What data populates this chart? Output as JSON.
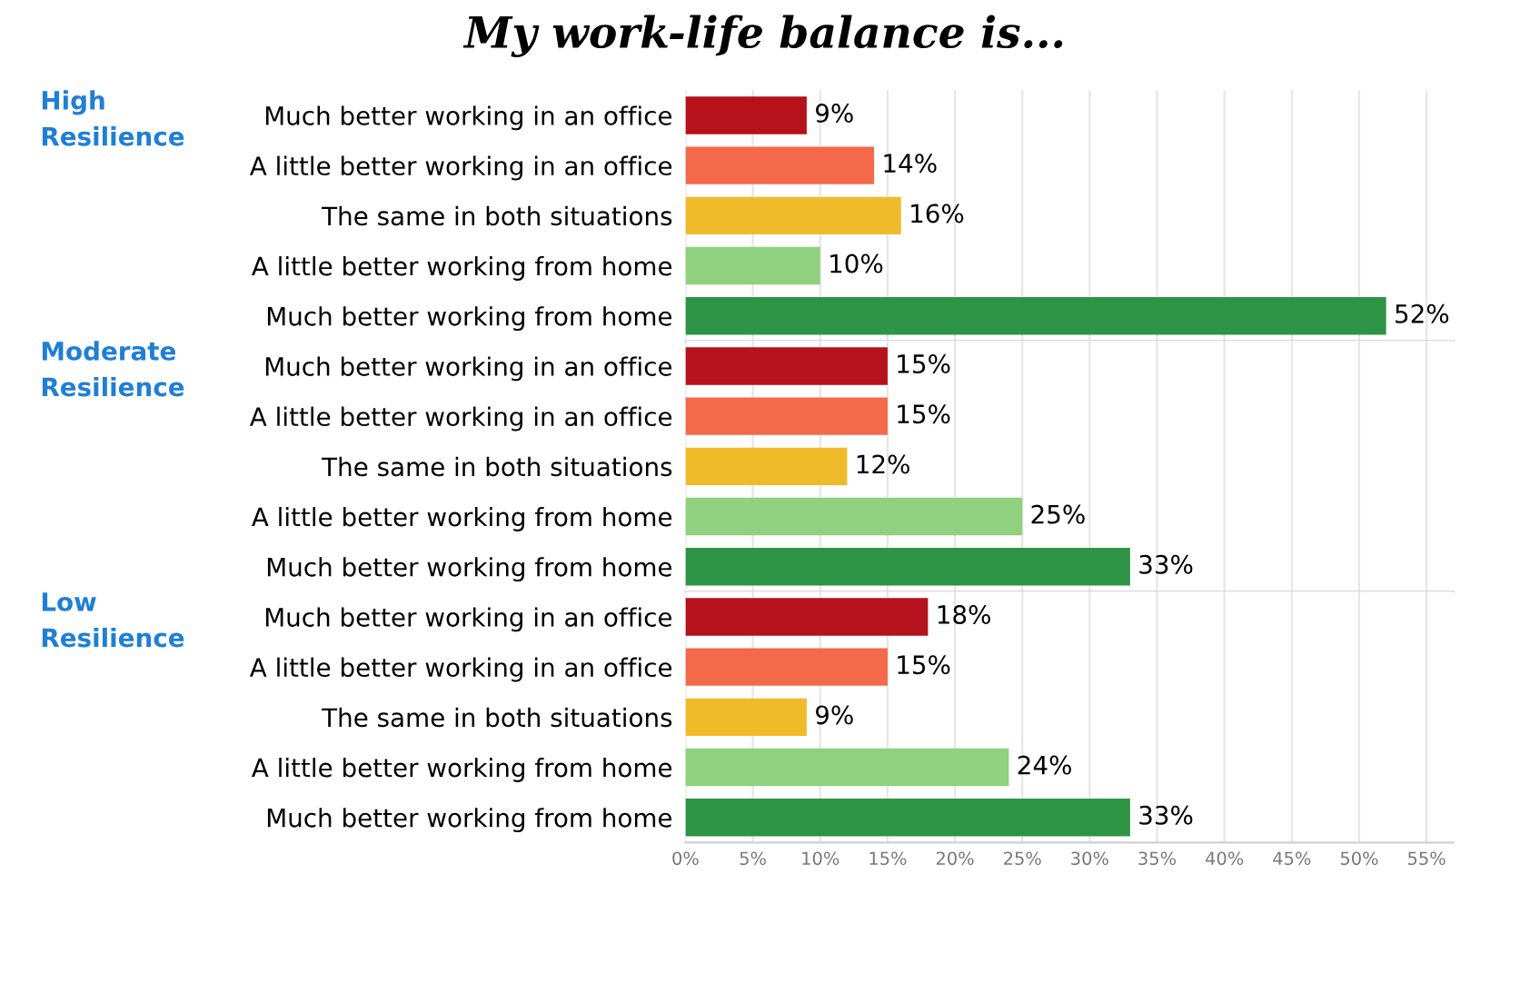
{
  "chart_data": [
    {
      "type": "bar",
      "orientation": "horizontal",
      "title": "My work-life balance is...",
      "ylabel": "High\nResilience",
      "categories": [
        "Much better working in an office",
        "A little better working in an office",
        "The same in both situations",
        "A little better working from home",
        "Much better working from home"
      ],
      "values": [
        9,
        14,
        16,
        10,
        52
      ],
      "colors": [
        "#b5121b",
        "#f4694a",
        "#f0bb2b",
        "#8fd17e",
        "#2e9445"
      ],
      "value_labels": [
        "9%",
        "14%",
        "16%",
        "10%",
        "52%"
      ],
      "xlim": [
        0,
        57
      ],
      "xticks": [
        0,
        5,
        10,
        15,
        20,
        25,
        30,
        35,
        40,
        45,
        50,
        55
      ],
      "tick_labels": "y",
      "grid": "x"
    },
    {
      "type": "bar",
      "orientation": "horizontal",
      "ylabel": "Moderate\nResilience",
      "categories": [
        "Much better working in an office",
        "A little better working in an office",
        "The same in both situations",
        "A little better working from home",
        "Much better working from home"
      ],
      "values": [
        15,
        15,
        12,
        25,
        33
      ],
      "colors": [
        "#b5121b",
        "#f4694a",
        "#f0bb2b",
        "#8fd17e",
        "#2e9445"
      ],
      "value_labels": [
        "15%",
        "15%",
        "12%",
        "25%",
        "33%"
      ],
      "xlim": [
        0,
        57
      ],
      "xticks": [
        0,
        5,
        10,
        15,
        20,
        25,
        30,
        35,
        40,
        45,
        50,
        55
      ],
      "tick_labels": "y",
      "grid": "x"
    },
    {
      "type": "bar",
      "orientation": "horizontal",
      "ylabel": "Low\nResilience",
      "categories": [
        "Much better working in an office",
        "A little better working in an office",
        "The same in both situations",
        "A little better working from home",
        "Much better working from home"
      ],
      "values": [
        18,
        15,
        9,
        24,
        33
      ],
      "colors": [
        "#b5121b",
        "#f4694a",
        "#f0bb2b",
        "#8fd17e",
        "#2e9445"
      ],
      "value_labels": [
        "18%",
        "15%",
        "9%",
        "24%",
        "33%"
      ],
      "xlim": [
        0,
        57
      ],
      "xticks": [
        {
          "value": 0,
          "label": "0%"
        },
        {
          "value": 5,
          "label": "5%"
        },
        {
          "value": 10,
          "label": "10%"
        },
        {
          "value": 15,
          "label": "15%"
        },
        {
          "value": 20,
          "label": "20%"
        },
        {
          "value": 25,
          "label": "25%"
        },
        {
          "value": 30,
          "label": "30%"
        },
        {
          "value": 35,
          "label": "35%"
        },
        {
          "value": 40,
          "label": "40%"
        },
        {
          "value": 45,
          "label": "45%"
        },
        {
          "value": 50,
          "label": "50%"
        },
        {
          "value": 55,
          "label": "55%"
        }
      ],
      "grid": "x"
    }
  ]
}
